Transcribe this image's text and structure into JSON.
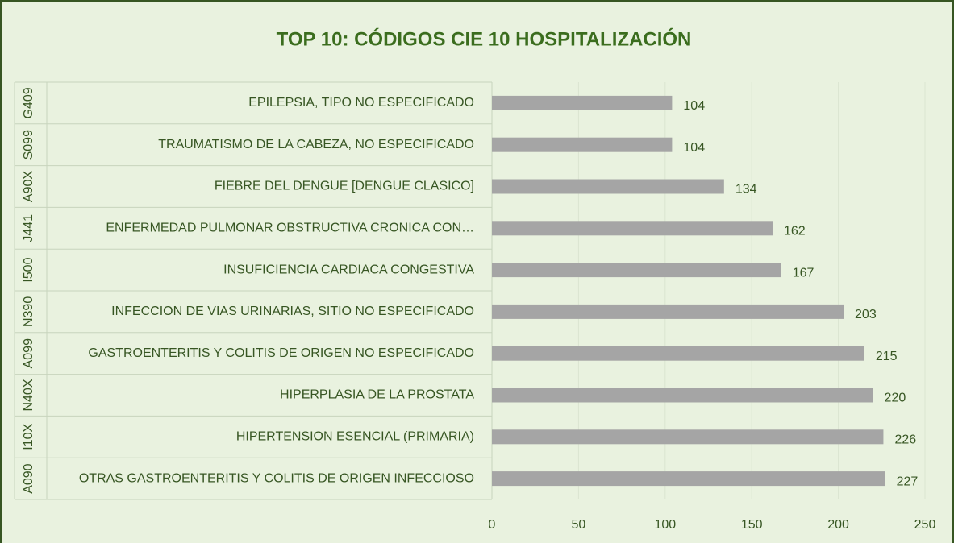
{
  "chart_data": {
    "type": "bar",
    "orientation": "horizontal",
    "title": "TOP 10: CÓDIGOS CIE 10 HOSPITALIZACIÓN",
    "codes": [
      "G409",
      "S099",
      "A90X",
      "J441",
      "I500",
      "N390",
      "A099",
      "N40X",
      "I10X",
      "A090"
    ],
    "categories": [
      "EPILEPSIA, TIPO NO ESPECIFICADO",
      "TRAUMATISMO DE LA CABEZA, NO ESPECIFICADO",
      "FIEBRE DEL DENGUE [DENGUE CLASICO]",
      "ENFERMEDAD PULMONAR OBSTRUCTIVA CRONICA CON…",
      "INSUFICIENCIA CARDIACA CONGESTIVA",
      "INFECCION DE VIAS URINARIAS, SITIO NO ESPECIFICADO",
      "GASTROENTERITIS Y COLITIS DE ORIGEN NO ESPECIFICADO",
      "HIPERPLASIA DE LA PROSTATA",
      "HIPERTENSION ESENCIAL (PRIMARIA)",
      "OTRAS GASTROENTERITIS Y COLITIS DE ORIGEN INFECCIOSO"
    ],
    "values": [
      104,
      104,
      134,
      162,
      167,
      203,
      215,
      220,
      226,
      227
    ],
    "color": "#a5a5a5",
    "xlim": [
      0,
      250
    ],
    "xticks": [
      0,
      50,
      100,
      150,
      200,
      250
    ],
    "grid": true
  }
}
